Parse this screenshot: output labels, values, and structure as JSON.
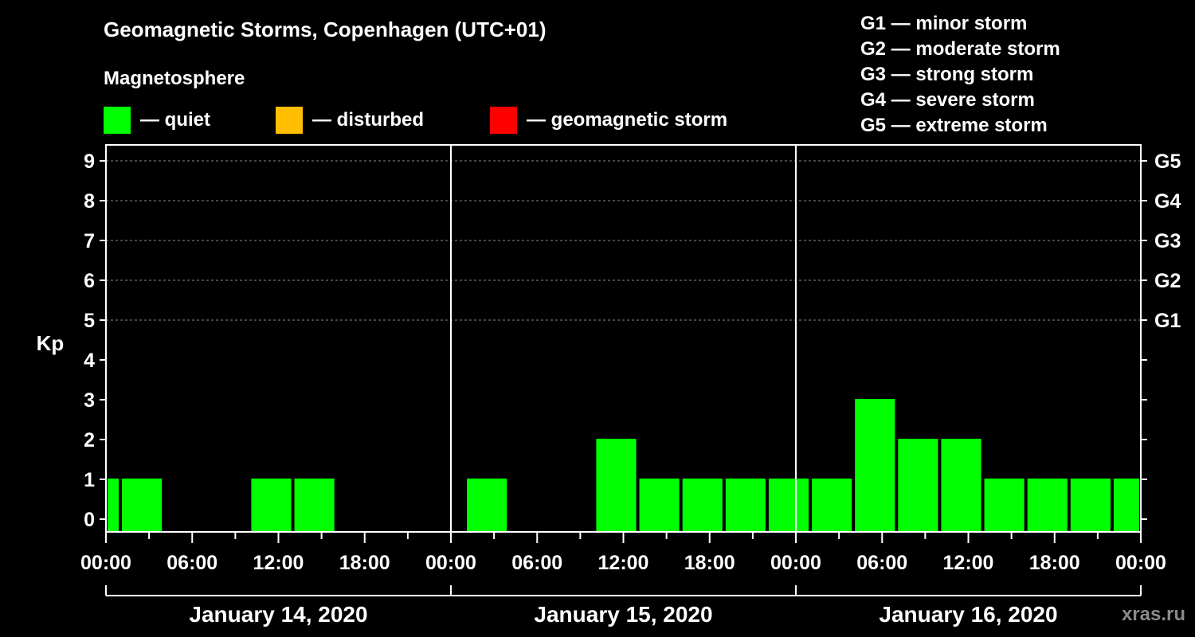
{
  "title": "Geomagnetic Storms, Copenhagen (UTC+01)",
  "legend": {
    "heading": "Magnetosphere",
    "items": [
      {
        "label": "— quiet",
        "color": "#00ff00"
      },
      {
        "label": "— disturbed",
        "color": "#ffbf00"
      },
      {
        "label": "— geomagnetic storm",
        "color": "#ff0000"
      }
    ]
  },
  "storm_scale": [
    {
      "label": "G1 — minor storm"
    },
    {
      "label": "G2 — moderate storm"
    },
    {
      "label": "G3 — strong storm"
    },
    {
      "label": "G4 — severe storm"
    },
    {
      "label": "G5 — extreme storm"
    }
  ],
  "watermark": "xras.ru",
  "chart_data": {
    "type": "bar",
    "ylabel": "Kp",
    "ylim": [
      0,
      9
    ],
    "yticks": [
      0,
      1,
      2,
      3,
      4,
      5,
      6,
      7,
      8,
      9
    ],
    "right_axis_labels": [
      {
        "kp": 5,
        "label": "G1"
      },
      {
        "kp": 6,
        "label": "G2"
      },
      {
        "kp": 7,
        "label": "G3"
      },
      {
        "kp": 8,
        "label": "G4"
      },
      {
        "kp": 9,
        "label": "G5"
      }
    ],
    "xlim_hours": [
      0,
      72
    ],
    "xtick_labels": [
      "00:00",
      "06:00",
      "12:00",
      "18:00",
      "00:00",
      "06:00",
      "12:00",
      "18:00",
      "00:00",
      "06:00",
      "12:00",
      "18:00",
      "00:00"
    ],
    "days": [
      "January 14, 2020",
      "January 15, 2020",
      "January 16, 2020"
    ],
    "grid": true,
    "series": [
      {
        "color": "#00ff00",
        "bars": [
          {
            "start": 0,
            "end": 1,
            "kp": 1
          },
          {
            "start": 1,
            "end": 4,
            "kp": 1
          },
          {
            "start": 10,
            "end": 13,
            "kp": 1
          },
          {
            "start": 13,
            "end": 16,
            "kp": 1
          },
          {
            "start": 25,
            "end": 28,
            "kp": 1
          },
          {
            "start": 34,
            "end": 37,
            "kp": 2
          },
          {
            "start": 37,
            "end": 40,
            "kp": 1
          },
          {
            "start": 40,
            "end": 43,
            "kp": 1
          },
          {
            "start": 43,
            "end": 46,
            "kp": 1
          },
          {
            "start": 46,
            "end": 49,
            "kp": 1
          },
          {
            "start": 49,
            "end": 52,
            "kp": 1
          },
          {
            "start": 52,
            "end": 55,
            "kp": 3
          },
          {
            "start": 55,
            "end": 58,
            "kp": 2
          },
          {
            "start": 58,
            "end": 61,
            "kp": 2
          },
          {
            "start": 61,
            "end": 64,
            "kp": 1
          },
          {
            "start": 64,
            "end": 67,
            "kp": 1
          },
          {
            "start": 67,
            "end": 70,
            "kp": 1
          },
          {
            "start": 70,
            "end": 72,
            "kp": 1
          }
        ]
      }
    ]
  }
}
